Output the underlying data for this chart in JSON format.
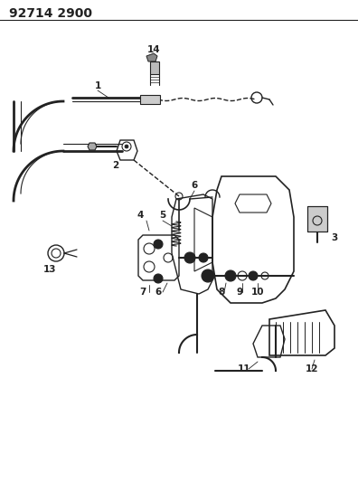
{
  "title": "92714 2900",
  "bg_color": "#ffffff",
  "line_color": "#222222",
  "title_fontsize": 10,
  "label_fontsize": 7.5,
  "figsize": [
    3.96,
    5.33
  ],
  "dpi": 100
}
